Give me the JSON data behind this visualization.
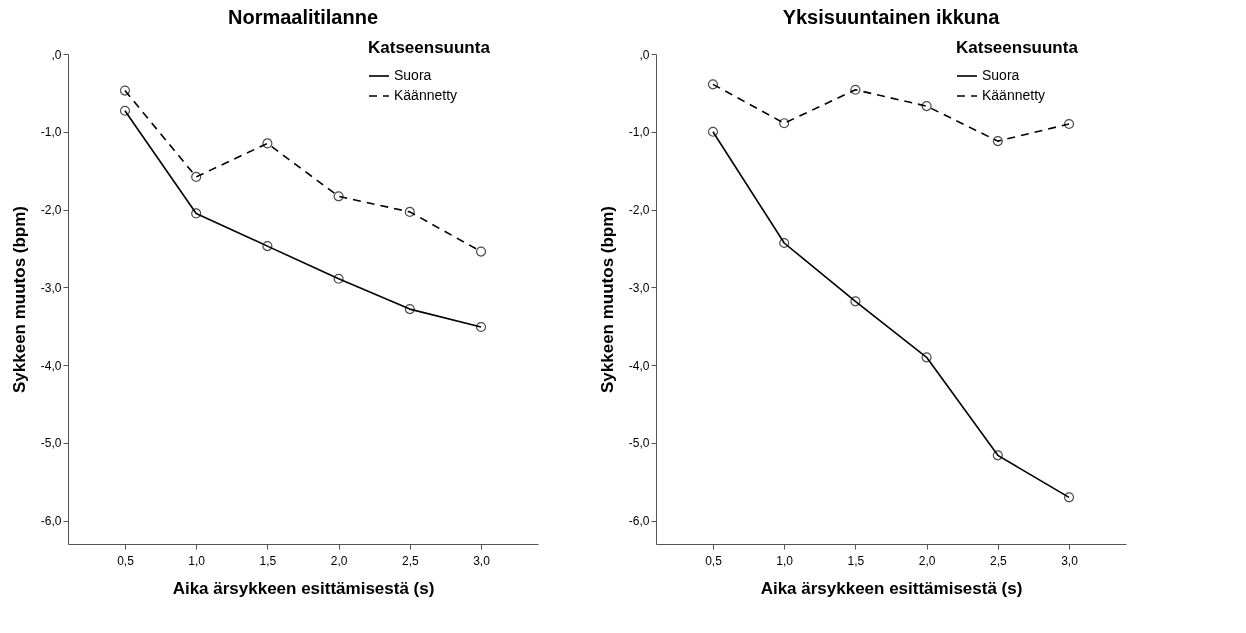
{
  "chart_data": [
    {
      "type": "line",
      "title": "Normaalitilanne",
      "xlabel": "Aika ärsykkeen esittämisestä (s)",
      "ylabel": "Sykkeen muutos (bpm)",
      "legend_title": "Katseensuunta",
      "legend": "top right",
      "marker": "circle",
      "grid": false,
      "x": [
        0.5,
        1.0,
        1.5,
        2.0,
        2.5,
        3.0
      ],
      "series": [
        {
          "name": "Suora",
          "color": "#000000",
          "line_style": "solid",
          "values": [
            -0.73,
            -2.05,
            -2.47,
            -2.89,
            -3.28,
            -3.51
          ]
        },
        {
          "name": "Käännetty",
          "color": "#000000",
          "line_style": "dashed",
          "values": [
            -0.47,
            -1.58,
            -1.15,
            -1.83,
            -2.03,
            -2.54
          ]
        }
      ],
      "xlim": [
        0.1,
        3.4
      ],
      "xticks": [
        {
          "value": 0.5,
          "label": "0,5"
        },
        {
          "value": 1.0,
          "label": "1,0"
        },
        {
          "value": 1.5,
          "label": "1,5"
        },
        {
          "value": 2.0,
          "label": "2,0"
        },
        {
          "value": 2.5,
          "label": "2,5"
        },
        {
          "value": 3.0,
          "label": "3,0"
        }
      ],
      "ylim": [
        -6.3,
        0
      ],
      "yticks": [
        {
          "value": 0,
          "label": ",0"
        },
        {
          "value": -1,
          "label": "-1,0"
        },
        {
          "value": -2,
          "label": "-2,0"
        },
        {
          "value": -3,
          "label": "-3,0"
        },
        {
          "value": -4,
          "label": "-4,0"
        },
        {
          "value": -5,
          "label": "-5,0"
        },
        {
          "value": -6,
          "label": "-6,0"
        }
      ]
    },
    {
      "type": "line",
      "title": "Yksisuuntainen ikkuna",
      "xlabel": "Aika ärsykkeen esittämisestä (s)",
      "ylabel": "Sykkeen muutos (bpm)",
      "legend_title": "Katseensuunta",
      "legend": "top right",
      "marker": "circle",
      "grid": false,
      "x": [
        0.5,
        1.0,
        1.5,
        2.0,
        2.5,
        3.0
      ],
      "series": [
        {
          "name": "Suora",
          "color": "#000000",
          "line_style": "solid",
          "values": [
            -1.0,
            -2.43,
            -3.18,
            -3.9,
            -5.16,
            -5.7
          ]
        },
        {
          "name": "Käännetty",
          "color": "#000000",
          "line_style": "dashed",
          "values": [
            -0.39,
            -0.89,
            -0.46,
            -0.67,
            -1.12,
            -0.9
          ]
        }
      ],
      "xlim": [
        0.1,
        3.4
      ],
      "xticks": [
        {
          "value": 0.5,
          "label": "0,5"
        },
        {
          "value": 1.0,
          "label": "1,0"
        },
        {
          "value": 1.5,
          "label": "1,5"
        },
        {
          "value": 2.0,
          "label": "2,0"
        },
        {
          "value": 2.5,
          "label": "2,5"
        },
        {
          "value": 3.0,
          "label": "3,0"
        }
      ],
      "ylim": [
        -6.3,
        0
      ],
      "yticks": [
        {
          "value": 0,
          "label": ",0"
        },
        {
          "value": -1,
          "label": "-1,0"
        },
        {
          "value": -2,
          "label": "-2,0"
        },
        {
          "value": -3,
          "label": "-3,0"
        },
        {
          "value": -4,
          "label": "-4,0"
        },
        {
          "value": -5,
          "label": "-5,0"
        },
        {
          "value": -6,
          "label": "-6,0"
        }
      ]
    }
  ]
}
